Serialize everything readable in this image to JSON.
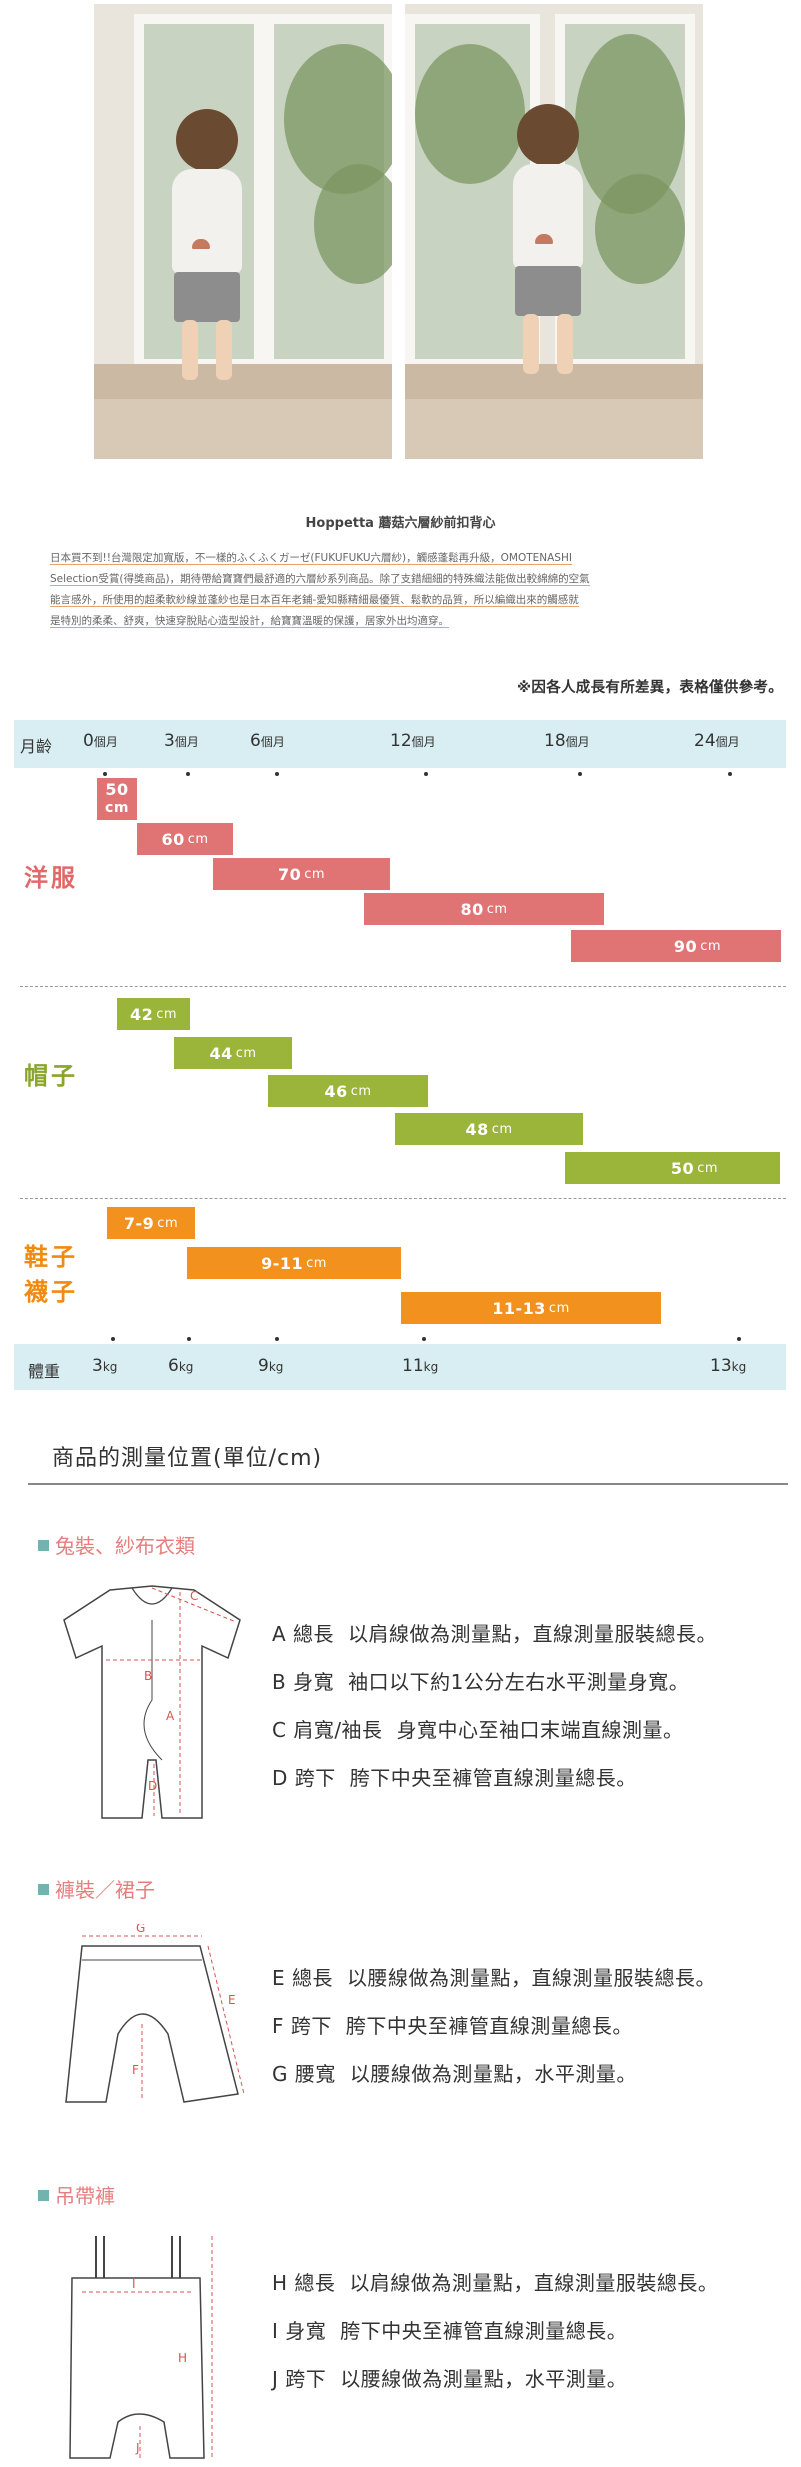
{
  "intro": {
    "title": "Hoppetta 蘑菇六層紗前扣背心",
    "lines": [
      "日本買不到!!台灣限定加寬版，不一樣的ふくふくガーゼ(FUKUFUKU六層紗)，觸感蓬鬆再升級，OMOTENASHI",
      "Selection受賞(得獎商品)，期待帶給寶寶們最舒適的六層紗系列商品。除了支錯細細的特殊織法能做出較綿綿的空氣",
      "能言感外，所使用的超柔軟紗線並蓬紗也是日本百年老鋪-愛知縣精細最優質、鬆軟的品質，所以編織出來的觸感就",
      "是特別的柔柔、舒爽，快速穿脫貼心造型設計，給寶寶溫暖的保護，居家外出均適穿。"
    ]
  },
  "note": "※因各人成長有所差異，表格僅供參考。",
  "chart_data": {
    "type": "table",
    "age_label": "月齡",
    "age_ticks": [
      {
        "num": "0",
        "unit": "個月"
      },
      {
        "num": "3",
        "unit": "個月"
      },
      {
        "num": "6",
        "unit": "個月"
      },
      {
        "num": "12",
        "unit": "個月"
      },
      {
        "num": "18",
        "unit": "個月"
      },
      {
        "num": "24",
        "unit": "個月"
      }
    ],
    "weight_label": "體重",
    "weight_ticks": [
      {
        "num": "3",
        "unit": "kg"
      },
      {
        "num": "6",
        "unit": "kg"
      },
      {
        "num": "9",
        "unit": "kg"
      },
      {
        "num": "11",
        "unit": "kg"
      },
      {
        "num": "13",
        "unit": "kg"
      }
    ],
    "clothes": {
      "label": "洋服",
      "bars": [
        {
          "size": "50",
          "unit": "cm"
        },
        {
          "size": "60",
          "unit": "cm"
        },
        {
          "size": "70",
          "unit": "cm"
        },
        {
          "size": "80",
          "unit": "cm"
        },
        {
          "size": "90",
          "unit": "cm"
        }
      ]
    },
    "hats": {
      "label": "帽子",
      "bars": [
        {
          "size": "42",
          "unit": "cm"
        },
        {
          "size": "44",
          "unit": "cm"
        },
        {
          "size": "46",
          "unit": "cm"
        },
        {
          "size": "48",
          "unit": "cm"
        },
        {
          "size": "50",
          "unit": "cm"
        }
      ]
    },
    "shoes": {
      "label_1": "鞋子",
      "label_2": "襪子",
      "bars": [
        {
          "size": "7-9",
          "unit": "cm"
        },
        {
          "size": "9-11",
          "unit": "cm"
        },
        {
          "size": "11-13",
          "unit": "cm"
        }
      ]
    },
    "colors": {
      "clothes": "#e07474",
      "hats": "#9bb43a",
      "shoes": "#f2911e"
    }
  },
  "measure": {
    "title": "商品的測量位置(單位/cm)",
    "groups": [
      {
        "name": "兔裝、紗布衣類",
        "items": [
          {
            "key": "A 總長",
            "desc": "以肩線做為測量點，直線測量服裝總長。"
          },
          {
            "key": "B 身寬",
            "desc": "袖口以下約1公分左右水平測量身寬。"
          },
          {
            "key": "C 肩寬/袖長",
            "desc": "身寬中心至袖口末端直線測量。"
          },
          {
            "key": "D 跨下",
            "desc": "胯下中央至褲管直線測量總長。"
          }
        ],
        "marks": [
          "A",
          "B",
          "C",
          "D"
        ]
      },
      {
        "name": "褲裝／裙子",
        "items": [
          {
            "key": "E 總長",
            "desc": "以腰線做為測量點，直線測量服裝總長。"
          },
          {
            "key": "F 跨下",
            "desc": "胯下中央至褲管直線測量總長。"
          },
          {
            "key": "G 腰寬",
            "desc": "以腰線做為測量點，水平測量。"
          }
        ],
        "marks": [
          "E",
          "F",
          "G"
        ]
      },
      {
        "name": "吊帶褲",
        "items": [
          {
            "key": "H 總長",
            "desc": "以肩線做為測量點，直線測量服裝總長。"
          },
          {
            "key": "I 身寬",
            "desc": "胯下中央至褲管直線測量總長。"
          },
          {
            "key": "J  跨下",
            "desc": "以腰線做為測量點，水平測量。"
          }
        ],
        "marks": [
          "H",
          "I",
          "J"
        ]
      }
    ]
  }
}
